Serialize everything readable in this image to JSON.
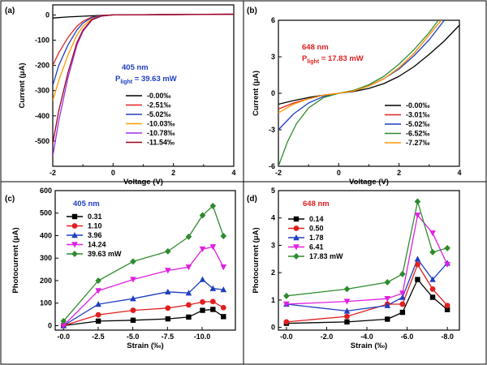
{
  "chart_data": [
    {
      "type": "line",
      "panel_label": "(a)",
      "xlabel": "Voltage (V)",
      "ylabel": "Current (μA)",
      "xlim": [
        -2,
        4
      ],
      "ylim": [
        -600,
        40
      ],
      "xticks": [
        "-2",
        "0",
        "2",
        "4"
      ],
      "yticks": [
        "0",
        "-100",
        "-200",
        "-300",
        "-400",
        "-500"
      ],
      "ytick_values": [
        0,
        -100,
        -200,
        -300,
        -400,
        -500
      ],
      "annotation": {
        "line1": "405 nm",
        "line2_main": "P",
        "line2_sub": "light",
        "line2_rest": " = 39.63 mW",
        "color": "#1f3ec0"
      },
      "legend_position": "lower-right",
      "series": [
        {
          "name": "-0.00‰",
          "color": "#000000",
          "x": [
            -2,
            -1.5,
            -1,
            -0.5,
            0,
            1,
            2,
            3,
            4
          ],
          "y": [
            -12,
            -8,
            -5,
            -2,
            0,
            1,
            1.5,
            2,
            2.5
          ]
        },
        {
          "name": "-2.51‰",
          "color": "#e02020",
          "x": [
            -2,
            -1.8,
            -1.5,
            -1.2,
            -1,
            -0.7,
            -0.4,
            0,
            4
          ],
          "y": [
            -200,
            -150,
            -90,
            -45,
            -25,
            -8,
            -2,
            0,
            3
          ]
        },
        {
          "name": "-5.02‰",
          "color": "#1f3ec0",
          "x": [
            -2,
            -1.8,
            -1.5,
            -1.2,
            -1,
            -0.7,
            -0.4,
            0,
            4
          ],
          "y": [
            -280,
            -200,
            -120,
            -60,
            -32,
            -10,
            -3,
            0,
            3
          ]
        },
        {
          "name": "-10.03‰",
          "color": "#ff9900",
          "x": [
            -2,
            -1.8,
            -1.5,
            -1.2,
            -1,
            -0.7,
            -0.4,
            0,
            4
          ],
          "y": [
            -340,
            -260,
            -160,
            -80,
            -45,
            -15,
            -4,
            0,
            3
          ]
        },
        {
          "name": "-10.78‰",
          "color": "#9b30e0",
          "x": [
            -2,
            -1.8,
            -1.5,
            -1.2,
            -1,
            -0.7,
            -0.4,
            0,
            4
          ],
          "y": [
            -560,
            -420,
            -250,
            -120,
            -65,
            -20,
            -5,
            0,
            3
          ]
        },
        {
          "name": "-11.54‰",
          "color": "#a0001e",
          "x": [
            -2,
            -1.8,
            -1.5,
            -1.2,
            -1,
            -0.7,
            -0.4,
            0,
            4
          ],
          "y": [
            -510,
            -380,
            -230,
            -110,
            -60,
            -18,
            -4,
            0,
            3
          ]
        }
      ]
    },
    {
      "type": "line",
      "panel_label": "(b)",
      "xlabel": "Voltage (V)",
      "ylabel": "Current (μA)",
      "xlim": [
        -2,
        4
      ],
      "ylim": [
        -6,
        6
      ],
      "xticks": [
        "-2",
        "0",
        "2",
        "4"
      ],
      "yticks": [
        "6",
        "3",
        "0",
        "-3",
        "-6"
      ],
      "ytick_values": [
        6,
        3,
        0,
        -3,
        -6
      ],
      "annotation": {
        "line1": "648 nm",
        "line2_main": "P",
        "line2_sub": "light",
        "line2_rest": " = 17.83 mW",
        "color": "#e02020"
      },
      "legend_position": "lower-right",
      "series": [
        {
          "name": "-0.00‰",
          "color": "#000000",
          "x": [
            -2,
            -1.5,
            -1,
            -0.5,
            0,
            0.5,
            1,
            1.5,
            2,
            2.5,
            3,
            3.5,
            4
          ],
          "y": [
            -0.9,
            -0.6,
            -0.35,
            -0.15,
            0,
            0.15,
            0.4,
            0.8,
            1.4,
            2.2,
            3.2,
            4.3,
            5.6
          ]
        },
        {
          "name": "-3.01‰",
          "color": "#e02020",
          "x": [
            -2,
            -1.5,
            -1,
            -0.5,
            0,
            0.5,
            1,
            1.5,
            2,
            2.5,
            3,
            3.4
          ],
          "y": [
            -1.3,
            -0.8,
            -0.45,
            -0.15,
            0,
            0.2,
            0.6,
            1.2,
            2.1,
            3.3,
            4.8,
            6
          ]
        },
        {
          "name": "-5.02‰",
          "color": "#1f3ec0",
          "x": [
            -2,
            -1.5,
            -1,
            -0.5,
            0,
            0.5,
            1,
            1.5,
            2,
            2.5,
            3,
            3.5
          ],
          "y": [
            -3,
            -1.7,
            -0.8,
            -0.25,
            0,
            0.2,
            0.6,
            1.2,
            2.0,
            3.1,
            4.4,
            6
          ]
        },
        {
          "name": "-6.52‰",
          "color": "#2e8b2e",
          "x": [
            -2,
            -1.7,
            -1.4,
            -1,
            -0.5,
            0,
            0.5,
            1,
            1.5,
            2,
            2.5,
            3,
            3.3
          ],
          "y": [
            -6,
            -4,
            -2.5,
            -1.2,
            -0.35,
            0,
            0.25,
            0.7,
            1.4,
            2.4,
            3.6,
            5.0,
            6
          ]
        },
        {
          "name": "-7.27‰",
          "color": "#ff9900",
          "x": [
            -2,
            -1.5,
            -1,
            -0.5,
            0,
            0.5,
            1,
            1.5,
            2,
            2.5,
            3,
            3.4
          ],
          "y": [
            -1.6,
            -0.9,
            -0.45,
            -0.15,
            0,
            0.2,
            0.6,
            1.2,
            2.1,
            3.3,
            4.8,
            6
          ]
        }
      ]
    },
    {
      "type": "line",
      "panel_label": "(c)",
      "xlabel": "Strain (‰)",
      "ylabel": "Photocurrent (μA)",
      "xlim": [
        0.6,
        -12.4
      ],
      "ylim": [
        -20,
        600
      ],
      "xticks": [
        "-0.0",
        "-2.5",
        "-5.0",
        "-7.5",
        "-10.0"
      ],
      "xtick_values": [
        0,
        -2.5,
        -5,
        -7.5,
        -10
      ],
      "yticks": [
        "0",
        "100",
        "200",
        "300",
        "400",
        "500",
        "600"
      ],
      "ytick_values": [
        0,
        100,
        200,
        300,
        400,
        500,
        600
      ],
      "annotation": {
        "line1": "405 nm",
        "color": "#1f3ec0"
      },
      "legend_position": "upper-left",
      "x": [
        0,
        -2.51,
        -5.02,
        -7.53,
        -9.03,
        -10.03,
        -10.78,
        -11.54
      ],
      "series": [
        {
          "name": "0.31",
          "color": "#000000",
          "marker": "square",
          "values": [
            0,
            20,
            24,
            30,
            38,
            68,
            72,
            40
          ]
        },
        {
          "name": "1.10",
          "color": "#e02020",
          "marker": "circle",
          "values": [
            0,
            48,
            68,
            78,
            92,
            105,
            107,
            80
          ]
        },
        {
          "name": "3.96",
          "color": "#1f3ec0",
          "marker": "triangle-up",
          "values": [
            0,
            95,
            120,
            150,
            145,
            205,
            165,
            160
          ]
        },
        {
          "name": "14.24",
          "color": "#e020e0",
          "marker": "triangle-down",
          "values": [
            0,
            155,
            205,
            245,
            260,
            340,
            350,
            260
          ]
        },
        {
          "name": "39.63 mW",
          "color": "#2e8b2e",
          "marker": "diamond",
          "values": [
            20,
            200,
            285,
            330,
            395,
            490,
            532,
            398
          ]
        }
      ]
    },
    {
      "type": "line",
      "panel_label": "(d)",
      "xlabel": "Strain (‰)",
      "ylabel": "Photocurrent (μA)",
      "xlim": [
        0.4,
        -8.6
      ],
      "ylim": [
        -0.1,
        5
      ],
      "xticks": [
        "-0.0",
        "-2.0",
        "-4.0",
        "-6.0",
        "-8.0"
      ],
      "xtick_values": [
        0,
        -2,
        -4,
        -6,
        -8
      ],
      "yticks": [
        "0",
        "1",
        "2",
        "3",
        "4",
        "5"
      ],
      "ytick_values": [
        0,
        1,
        2,
        3,
        4,
        5
      ],
      "annotation": {
        "line1": "648 nm",
        "color": "#e02020"
      },
      "legend_position": "upper-left",
      "x": [
        0,
        -3.01,
        -5.02,
        -5.77,
        -6.52,
        -7.27,
        -8.0
      ],
      "series": [
        {
          "name": "0.14",
          "color": "#000000",
          "marker": "square",
          "values": [
            0.15,
            0.2,
            0.3,
            0.55,
            1.75,
            1.1,
            0.65
          ]
        },
        {
          "name": "0.50",
          "color": "#e02020",
          "marker": "circle",
          "values": [
            0.2,
            0.4,
            0.85,
            0.85,
            2.3,
            1.4,
            0.8
          ]
        },
        {
          "name": "1.78",
          "color": "#1f3ec0",
          "marker": "triangle-up",
          "values": [
            0.85,
            0.6,
            0.8,
            1.1,
            2.5,
            1.75,
            2.35
          ]
        },
        {
          "name": "6.41",
          "color": "#e020e0",
          "marker": "triangle-down",
          "values": [
            0.85,
            0.95,
            1.05,
            1.25,
            4.1,
            3.45,
            2.3
          ]
        },
        {
          "name": "17.83 mW",
          "color": "#2e8b2e",
          "marker": "diamond",
          "values": [
            1.15,
            1.4,
            1.65,
            1.95,
            4.6,
            2.75,
            2.9
          ]
        }
      ]
    }
  ]
}
